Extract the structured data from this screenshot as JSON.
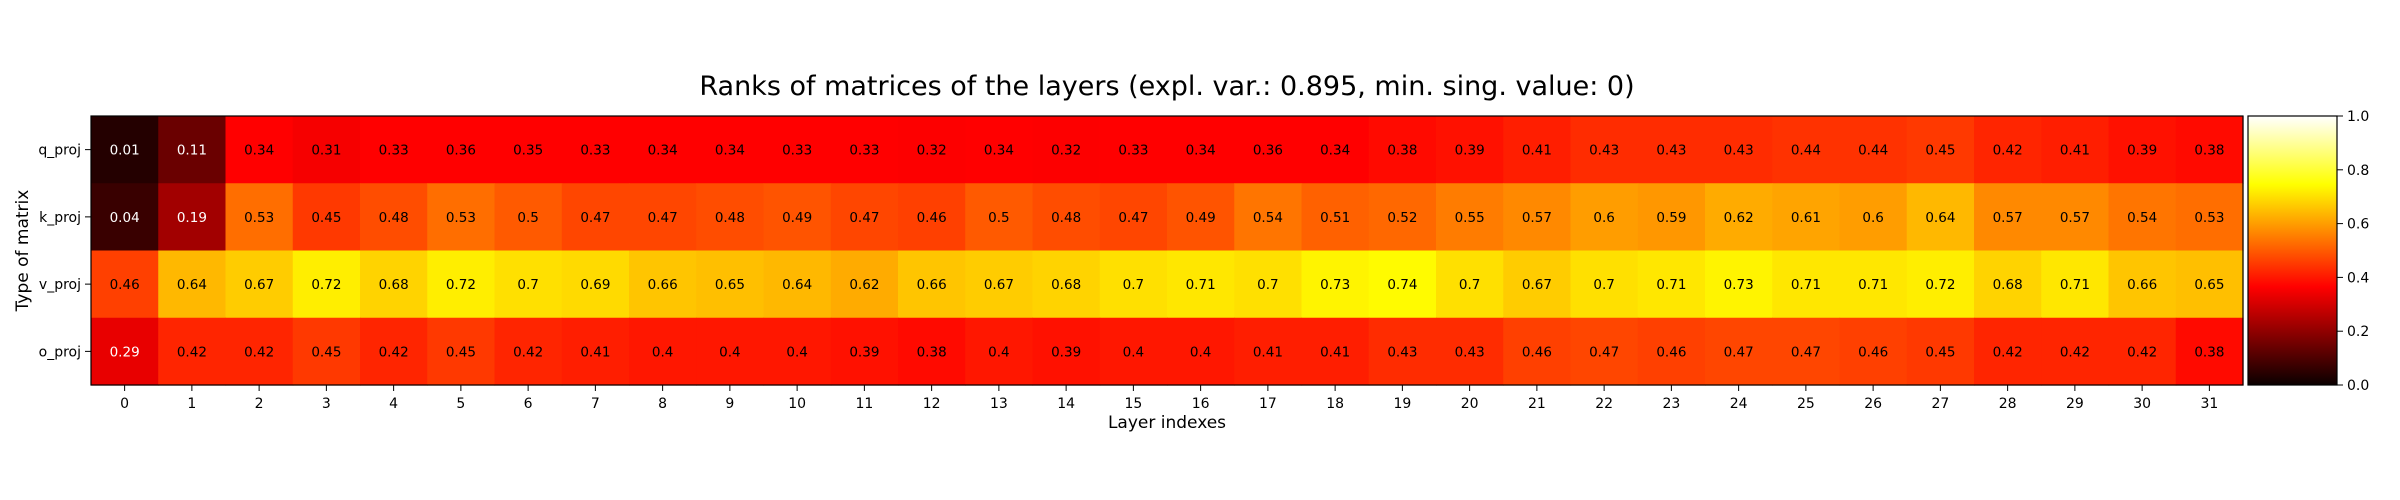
{
  "chart_data": {
    "type": "heatmap",
    "title": "Ranks of matrices of the layers (expl. var.: 0.895, min. sing. value: 0)",
    "xlabel": "Layer indexes",
    "ylabel": "Type of matrix",
    "x_categories": [
      "0",
      "1",
      "2",
      "3",
      "4",
      "5",
      "6",
      "7",
      "8",
      "9",
      "10",
      "11",
      "12",
      "13",
      "14",
      "15",
      "16",
      "17",
      "18",
      "19",
      "20",
      "21",
      "22",
      "23",
      "24",
      "25",
      "26",
      "27",
      "28",
      "29",
      "30",
      "31"
    ],
    "y_categories": [
      "q_proj",
      "k_proj",
      "v_proj",
      "o_proj"
    ],
    "values": [
      [
        0.01,
        0.11,
        0.34,
        0.31,
        0.33,
        0.36,
        0.35,
        0.33,
        0.34,
        0.34,
        0.33,
        0.33,
        0.32,
        0.34,
        0.32,
        0.33,
        0.34,
        0.36,
        0.34,
        0.38,
        0.39,
        0.41,
        0.43,
        0.43,
        0.43,
        0.44,
        0.44,
        0.45,
        0.42,
        0.41,
        0.39,
        0.38
      ],
      [
        0.04,
        0.19,
        0.53,
        0.45,
        0.48,
        0.53,
        0.5,
        0.47,
        0.47,
        0.48,
        0.49,
        0.47,
        0.46,
        0.5,
        0.48,
        0.47,
        0.49,
        0.54,
        0.51,
        0.52,
        0.55,
        0.57,
        0.6,
        0.59,
        0.62,
        0.61,
        0.6,
        0.64,
        0.57,
        0.57,
        0.54,
        0.53
      ],
      [
        0.46,
        0.64,
        0.67,
        0.72,
        0.68,
        0.72,
        0.7,
        0.69,
        0.66,
        0.65,
        0.64,
        0.62,
        0.66,
        0.67,
        0.68,
        0.7,
        0.71,
        0.7,
        0.73,
        0.74,
        0.7,
        0.67,
        0.7,
        0.71,
        0.73,
        0.71,
        0.71,
        0.72,
        0.68,
        0.71,
        0.66,
        0.65
      ],
      [
        0.29,
        0.42,
        0.42,
        0.45,
        0.42,
        0.45,
        0.42,
        0.41,
        0.4,
        0.4,
        0.4,
        0.39,
        0.38,
        0.4,
        0.39,
        0.4,
        0.4,
        0.41,
        0.41,
        0.43,
        0.43,
        0.46,
        0.47,
        0.46,
        0.47,
        0.47,
        0.46,
        0.45,
        0.42,
        0.42,
        0.42,
        0.38
      ]
    ],
    "colormap": "hot",
    "colorbar": {
      "range": [
        0,
        1
      ],
      "ticks": [
        "0.0",
        "0.2",
        "0.4",
        "0.6",
        "0.8",
        "1.0"
      ]
    },
    "cell_text_threshold": 0.3,
    "cell_text_dark": "#000000",
    "cell_text_light": "#ffffff"
  }
}
